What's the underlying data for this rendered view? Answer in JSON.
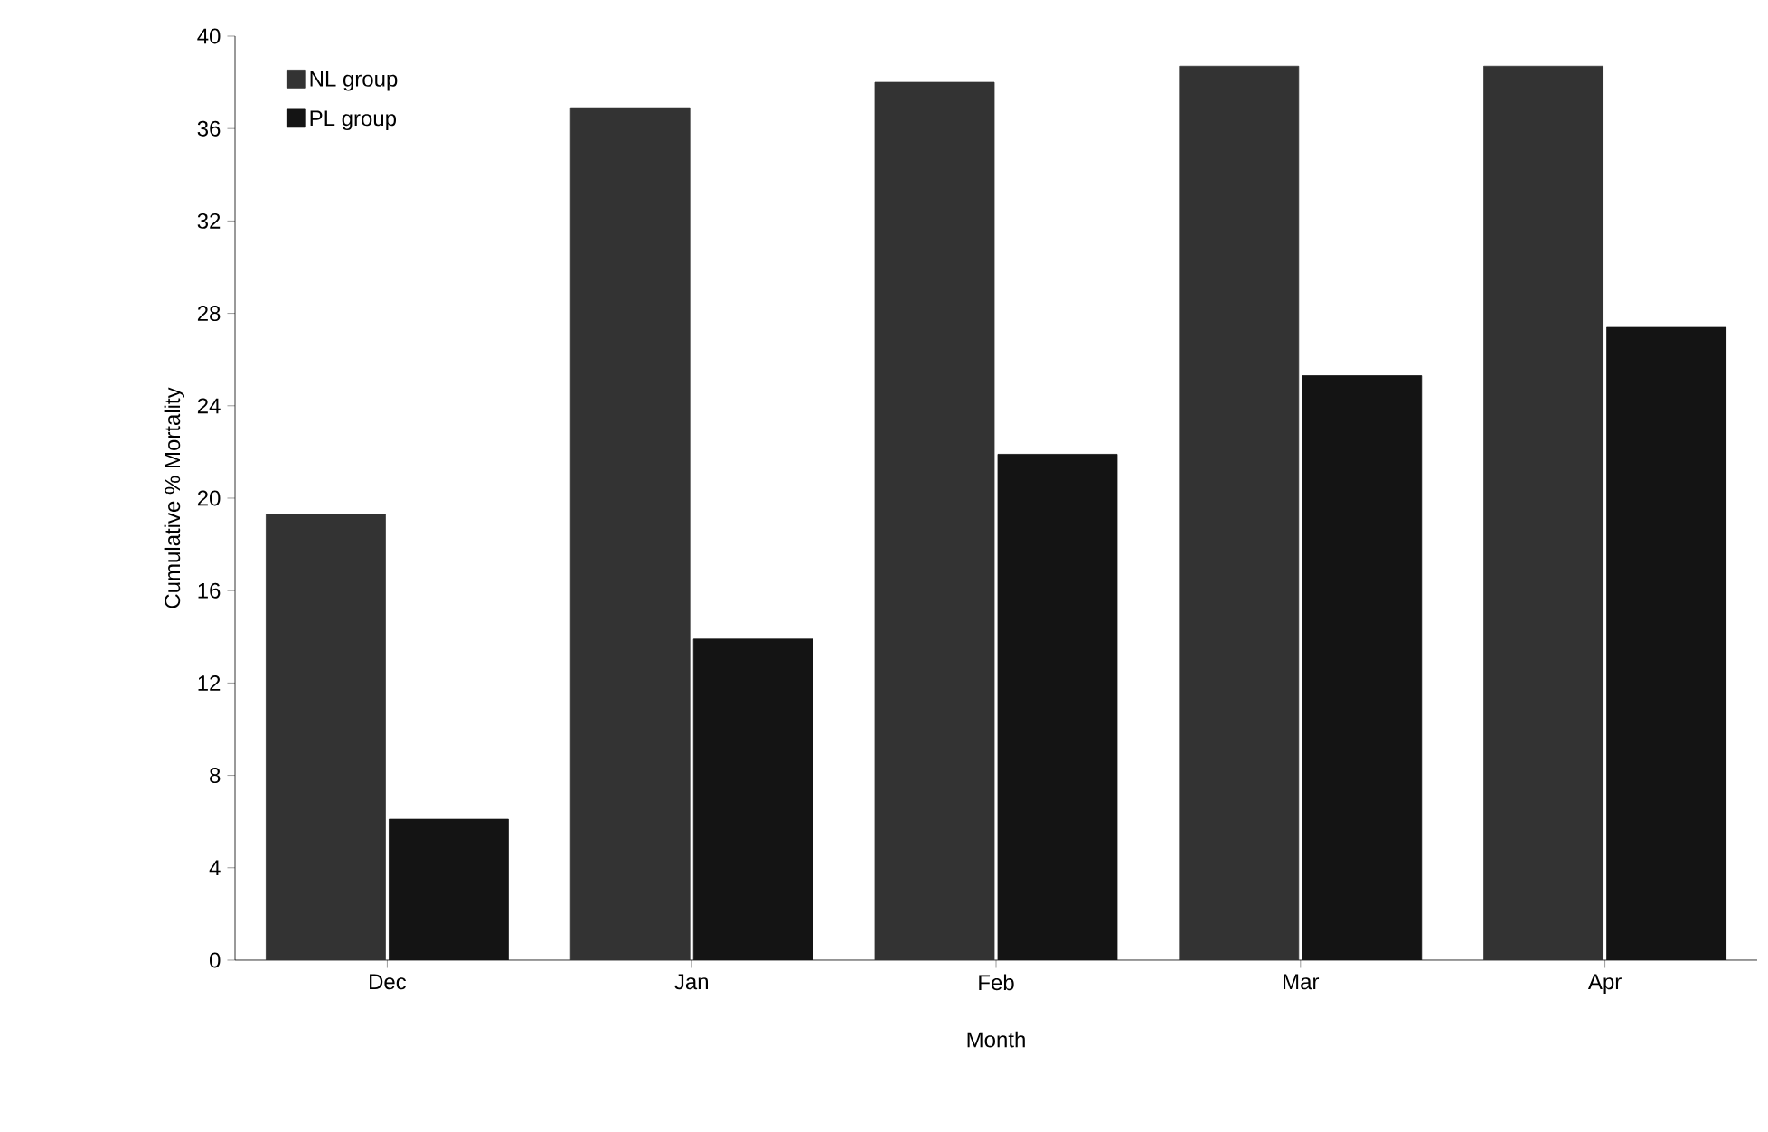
{
  "chart_data": {
    "type": "bar",
    "xlabel": "Month",
    "ylabel": "Cumulative % Mortality",
    "categories": [
      "Dec",
      "Jan",
      "Feb",
      "Mar",
      "Apr"
    ],
    "series": [
      {
        "name": "NL group",
        "color": "#333333",
        "values": [
          19.3,
          36.9,
          38.0,
          38.7,
          38.7
        ]
      },
      {
        "name": "PL group",
        "color": "#141414",
        "values": [
          6.1,
          13.9,
          21.9,
          25.3,
          27.4
        ]
      }
    ],
    "ylim": [
      0,
      40
    ],
    "yticks": [
      0,
      4,
      8,
      12,
      16,
      20,
      24,
      28,
      32,
      36,
      40
    ],
    "legend": "top left"
  }
}
